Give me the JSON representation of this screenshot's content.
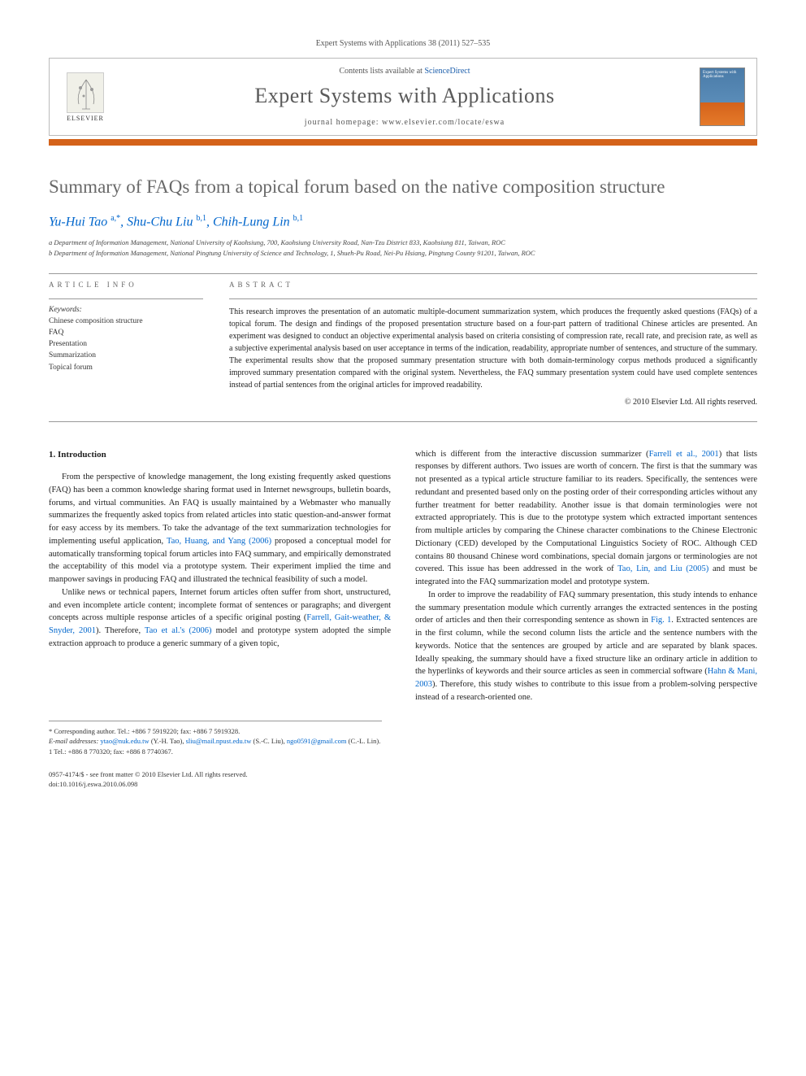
{
  "journal_ref": "Expert Systems with Applications 38 (2011) 527–535",
  "header": {
    "elsevier_label": "ELSEVIER",
    "contents_prefix": "Contents lists available at ",
    "contents_link": "ScienceDirect",
    "journal_title": "Expert Systems with Applications",
    "homepage_label": "journal homepage: www.elsevier.com/locate/eswa",
    "cover_text": "Expert Systems with Applications"
  },
  "title": "Summary of FAQs from a topical forum based on the native composition structure",
  "authors_html": "Yu-Hui Tao <span class='sup'>a,*</span>, Shu-Chu Liu <span class='sup'>b,1</span>, Chih-Lung Lin <span class='sup'>b,1</span>",
  "affiliations": [
    "a Department of Information Management, National University of Kaohsiung, 700, Kaohsiung University Road, Nan-Tzu District 833, Kaohsiung 811, Taiwan, ROC",
    "b Department of Information Management, National Pingtung University of Science and Technology, 1, Shueh-Pu Road, Nei-Pu Hsiang, Pingtung County 91201, Taiwan, ROC"
  ],
  "info_heading": "ARTICLE INFO",
  "keywords_label": "Keywords:",
  "keywords": [
    "Chinese composition structure",
    "FAQ",
    "Presentation",
    "Summarization",
    "Topical forum"
  ],
  "abstract_heading": "ABSTRACT",
  "abstract": "This research improves the presentation of an automatic multiple-document summarization system, which produces the frequently asked questions (FAQs) of a topical forum. The design and findings of the proposed presentation structure based on a four-part pattern of traditional Chinese articles are presented. An experiment was designed to conduct an objective experimental analysis based on criteria consisting of compression rate, recall rate, and precision rate, as well as a subjective experimental analysis based on user acceptance in terms of the indication, readability, appropriate number of sentences, and structure of the summary. The experimental results show that the proposed summary presentation structure with both domain-terminology corpus methods produced a significantly improved summary presentation compared with the original system. Nevertheless, the FAQ summary presentation system could have used complete sentences instead of partial sentences from the original articles for improved readability.",
  "copyright": "© 2010 Elsevier Ltd. All rights reserved.",
  "section1_heading": "1. Introduction",
  "col_left": {
    "p1_pre": "From the perspective of knowledge management, the long existing frequently asked questions (FAQ) has been a common knowledge sharing format used in Internet newsgroups, bulletin boards, forums, and virtual communities. An FAQ is usually maintained by a Webmaster who manually summarizes the frequently asked topics from related articles into static question-and-answer format for easy access by its members. To take the advantage of the text summarization technologies for implementing useful application, ",
    "p1_cite1": "Tao, Huang, and Yang (2006)",
    "p1_post": " proposed a conceptual model for automatically transforming topical forum articles into FAQ summary, and empirically demonstrated the acceptability of this model via a prototype system. Their experiment implied the time and manpower savings in producing FAQ and illustrated the technical feasibility of such a model.",
    "p2_pre": "Unlike news or technical papers, Internet forum articles often suffer from short, unstructured, and even incomplete article content; incomplete format of sentences or paragraphs; and divergent concepts across multiple response articles of a specific original posting (",
    "p2_cite1": "Farrell, Gait-weather, & Snyder, 2001",
    "p2_mid": "). Therefore, ",
    "p2_cite2": "Tao et al.'s (2006)",
    "p2_post": " model and prototype system adopted the simple extraction approach to produce a generic summary of a given topic,"
  },
  "col_right": {
    "p1_pre": "which is different from the interactive discussion summarizer (",
    "p1_cite1": "Farrell et al., 2001",
    "p1_mid1": ") that lists responses by different authors. Two issues are worth of concern. The first is that the summary was not presented as a typical article structure familiar to its readers. Specifically, the sentences were redundant and presented based only on the posting order of their corresponding articles without any further treatment for better readability. Another issue is that domain terminologies were not extracted appropriately. This is due to the prototype system which extracted important sentences from multiple articles by comparing the Chinese character combinations to the Chinese Electronic Dictionary (CED) developed by the Computational Linguistics Society of ROC. Although CED contains 80 thousand Chinese word combinations, special domain jargons or terminologies are not covered. This issue has been addressed in the work of ",
    "p1_cite2": "Tao, Lin, and Liu (2005)",
    "p1_post": " and must be integrated into the FAQ summarization model and prototype system.",
    "p2_pre": "In order to improve the readability of FAQ summary presentation, this study intends to enhance the summary presentation module which currently arranges the extracted sentences in the posting order of articles and then their corresponding sentence as shown in ",
    "p2_cite1": "Fig. 1",
    "p2_mid": ". Extracted sentences are in the first column, while the second column lists the article and the sentence numbers with the keywords. Notice that the sentences are grouped by article and are separated by blank spaces. Ideally speaking, the summary should have a fixed structure like an ordinary article in addition to the hyperlinks of keywords and their source articles as seen in commercial software (",
    "p2_cite2": "Hahn & Mani, 2003",
    "p2_post": "). Therefore, this study wishes to contribute to this issue from a problem-solving perspective instead of a research-oriented one."
  },
  "footnotes": {
    "corr": "* Corresponding author. Tel.: +886 7 5919220; fax: +886 7 5919328.",
    "emails_label": "E-mail addresses:",
    "email1": "ytao@nuk.edu.tw",
    "email1_who": " (Y.-H. Tao), ",
    "email2": "sliu@mail.npust.edu.tw",
    "email2_who": " (S.-C. Liu), ",
    "email3": "ngo0591@gmail.com",
    "email3_who": " (C.-L. Lin).",
    "tel1": "1 Tel.: +886 8 770320; fax: +886 8 7740367."
  },
  "footer": {
    "line1": "0957-4174/$ - see front matter © 2010 Elsevier Ltd. All rights reserved.",
    "line2": "doi:10.1016/j.eswa.2010.06.098"
  },
  "colors": {
    "link": "#0066cc",
    "title_gray": "#696969",
    "orange": "#d4621a"
  }
}
